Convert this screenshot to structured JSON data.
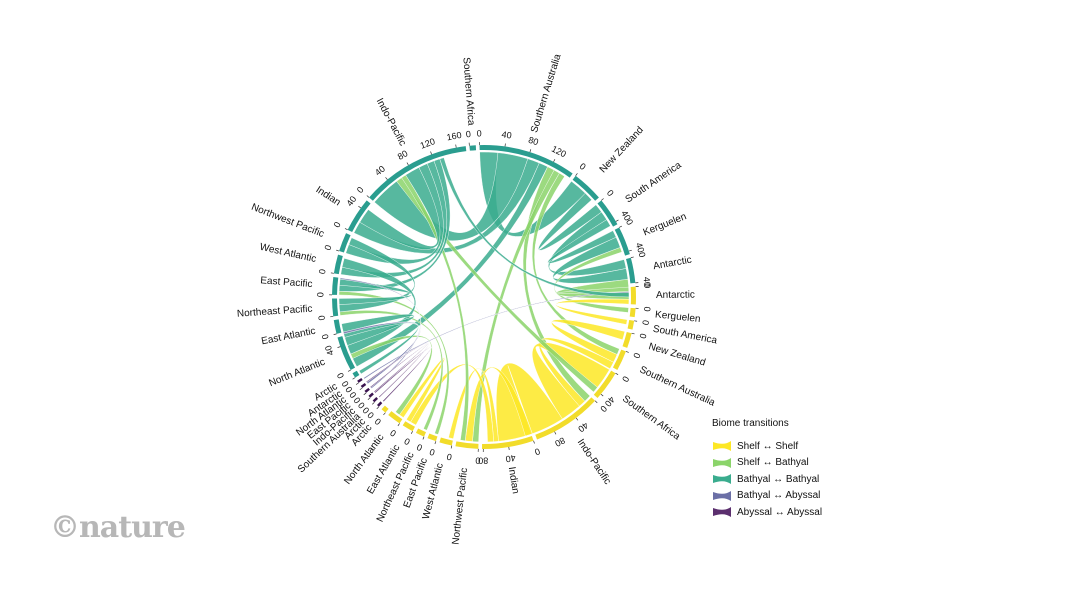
{
  "chart_data": {
    "type": "chord",
    "title": "",
    "legend": {
      "title": "Biome transitions",
      "placement": "bottom-right",
      "items": [
        {
          "label": "Shelf ↔ Shelf",
          "color": "#fde725"
        },
        {
          "label": "Shelf ↔ Bathyal",
          "color": "#8bd46a"
        },
        {
          "label": "Bathyal ↔ Bathyal",
          "color": "#3aac8e"
        },
        {
          "label": "Bathyal ↔ Abyssal",
          "color": "#6b6fa6"
        },
        {
          "label": "Abyssal ↔ Abyssal",
          "color": "#5b2f6e"
        }
      ]
    },
    "ring_groups": [
      {
        "biome": "Bathyal",
        "color": "#2a9d8f"
      },
      {
        "biome": "Shelf",
        "color": "#f2dc2a"
      },
      {
        "biome": "Abyssal",
        "color": "#3b1450"
      }
    ],
    "segments": [
      {
        "id": "b-saus",
        "label": "Southern Australia",
        "biome": "Bathyal",
        "size": 155,
        "ticks": [
          "0",
          "40",
          "80",
          "120"
        ]
      },
      {
        "id": "b-nz",
        "label": "New Zealand",
        "biome": "Bathyal",
        "size": 50,
        "ticks": [
          "0"
        ]
      },
      {
        "id": "b-sam",
        "label": "South America",
        "biome": "Bathyal",
        "size": 45,
        "ticks": [
          "0",
          "40"
        ]
      },
      {
        "id": "b-ker",
        "label": "Kerguelen",
        "biome": "Bathyal",
        "size": 45,
        "ticks": [
          "0",
          "40"
        ]
      },
      {
        "id": "b-ant",
        "label": "Antarctic",
        "biome": "Bathyal",
        "size": 40,
        "ticks": [
          "0",
          "40"
        ]
      },
      {
        "id": "s-ant",
        "label": "Antarctic",
        "biome": "Shelf",
        "size": 28,
        "ticks": [
          "0"
        ]
      },
      {
        "id": "s-ker",
        "label": "Kerguelen",
        "biome": "Shelf",
        "size": 14,
        "ticks": [
          "0"
        ]
      },
      {
        "id": "s-sam",
        "label": "South America",
        "biome": "Shelf",
        "size": 14,
        "ticks": [
          "0"
        ]
      },
      {
        "id": "s-nz",
        "label": "New Zealand",
        "biome": "Shelf",
        "size": 24,
        "ticks": [
          "0"
        ]
      },
      {
        "id": "s-saus",
        "label": "Southern Australia",
        "biome": "Shelf",
        "size": 32,
        "ticks": [
          "0"
        ]
      },
      {
        "id": "s-saf",
        "label": "Southern Africa",
        "biome": "Shelf",
        "size": 48,
        "ticks": [
          "0",
          "40"
        ]
      },
      {
        "id": "s-ipac",
        "label": "Indo-Pacific",
        "biome": "Shelf",
        "size": 110,
        "ticks": [
          "0",
          "40",
          "80"
        ]
      },
      {
        "id": "s-ind",
        "label": "Indian",
        "biome": "Shelf",
        "size": 82,
        "ticks": [
          "0",
          "40",
          "80"
        ]
      },
      {
        "id": "s-nwp",
        "label": "Northwest Pacific",
        "biome": "Shelf",
        "size": 36,
        "ticks": [
          "0"
        ]
      },
      {
        "id": "s-wat",
        "label": "West Atlantic",
        "biome": "Shelf",
        "size": 20,
        "ticks": [
          "0"
        ]
      },
      {
        "id": "s-epac",
        "label": "East Pacific",
        "biome": "Shelf",
        "size": 14,
        "ticks": [
          "0"
        ]
      },
      {
        "id": "s-nep",
        "label": "Northeast Pacific",
        "biome": "Shelf",
        "size": 14,
        "ticks": [
          "0"
        ]
      },
      {
        "id": "s-eat",
        "label": "East Atlantic",
        "biome": "Shelf",
        "size": 18,
        "ticks": [
          "0"
        ]
      },
      {
        "id": "s-nat",
        "label": "North Atlantic",
        "biome": "Shelf",
        "size": 22,
        "ticks": [
          "0"
        ]
      },
      {
        "id": "s-arc",
        "label": "Arctic",
        "biome": "Shelf",
        "size": 8,
        "ticks": [
          "0"
        ]
      },
      {
        "id": "a-arc",
        "label": "Arctic",
        "biome": "Abyssal",
        "size": 4,
        "ticks": [
          "0"
        ]
      },
      {
        "id": "a-saus",
        "label": "Southern Australia",
        "biome": "Abyssal",
        "size": 4,
        "ticks": [
          "0"
        ]
      },
      {
        "id": "a-ipac",
        "label": "Indo-Pacific",
        "biome": "Abyssal",
        "size": 4,
        "ticks": [
          "0"
        ]
      },
      {
        "id": "a-epac",
        "label": "East Pacific",
        "biome": "Abyssal",
        "size": 4,
        "ticks": [
          "0"
        ]
      },
      {
        "id": "a-nat",
        "label": "North Atlantic",
        "biome": "Abyssal",
        "size": 4,
        "ticks": [
          "0"
        ]
      },
      {
        "id": "a-ant",
        "label": "Antarctic",
        "biome": "Abyssal",
        "size": 4,
        "ticks": [
          "0"
        ]
      },
      {
        "id": "b-arc",
        "label": "Arctic",
        "biome": "Bathyal",
        "size": 8,
        "ticks": [
          "0"
        ]
      },
      {
        "id": "b-nat",
        "label": "North Atlantic",
        "biome": "Bathyal",
        "size": 55,
        "ticks": [
          "0",
          "40"
        ]
      },
      {
        "id": "b-eat",
        "label": "East Atlantic",
        "biome": "Bathyal",
        "size": 22,
        "ticks": [
          "0"
        ]
      },
      {
        "id": "b-nep",
        "label": "Northeast Pacific",
        "biome": "Bathyal",
        "size": 28,
        "ticks": [
          "0"
        ]
      },
      {
        "id": "b-epac",
        "label": "East Pacific",
        "biome": "Bathyal",
        "size": 28,
        "ticks": [
          "0"
        ]
      },
      {
        "id": "b-wat",
        "label": "West Atlantic",
        "biome": "Bathyal",
        "size": 30,
        "ticks": [
          "0"
        ]
      },
      {
        "id": "b-nwp",
        "label": "Northwest Pacific",
        "biome": "Bathyal",
        "size": 30,
        "ticks": [
          "0"
        ]
      },
      {
        "id": "b-ind",
        "label": "Indian",
        "biome": "Bathyal",
        "size": 55,
        "ticks": [
          "0",
          "40"
        ]
      },
      {
        "id": "b-ipac",
        "label": "Indo-Pacific",
        "biome": "Bathyal",
        "size": 175,
        "ticks": [
          "0",
          "40",
          "80",
          "120",
          "160"
        ]
      },
      {
        "id": "b-saf",
        "label": "Southern Africa",
        "biome": "Bathyal",
        "size": 10,
        "ticks": [
          "0"
        ]
      }
    ],
    "links": [
      {
        "from": "b-saus",
        "to": "b-nz",
        "value": 30,
        "type": "Bathyal ↔ Bathyal"
      },
      {
        "from": "b-saus",
        "to": "b-ipac",
        "value": 50,
        "type": "Bathyal ↔ Bathyal"
      },
      {
        "from": "b-saus",
        "to": "b-ind",
        "value": 20,
        "type": "Bathyal ↔ Bathyal"
      },
      {
        "from": "b-saus",
        "to": "b-nat",
        "value": 15,
        "type": "Bathyal ↔ Bathyal"
      },
      {
        "from": "b-saus",
        "to": "s-ipac",
        "value": 12,
        "type": "Shelf ↔ Bathyal"
      },
      {
        "from": "b-saus",
        "to": "s-nwp",
        "value": 10,
        "type": "Shelf ↔ Bathyal"
      },
      {
        "from": "b-saus",
        "to": "s-saus",
        "value": 10,
        "type": "Shelf ↔ Bathyal"
      },
      {
        "from": "b-nz",
        "to": "b-sam",
        "value": 15,
        "type": "Bathyal ↔ Bathyal"
      },
      {
        "from": "b-sam",
        "to": "b-ant",
        "value": 15,
        "type": "Bathyal ↔ Bathyal"
      },
      {
        "from": "b-sam",
        "to": "b-ker",
        "value": 12,
        "type": "Bathyal ↔ Bathyal"
      },
      {
        "from": "b-ker",
        "to": "b-ant",
        "value": 18,
        "type": "Bathyal ↔ Bathyal"
      },
      {
        "from": "b-ker",
        "to": "s-ker",
        "value": 8,
        "type": "Shelf ↔ Bathyal"
      },
      {
        "from": "b-ant",
        "to": "s-ant",
        "value": 20,
        "type": "Shelf ↔ Bathyal"
      },
      {
        "from": "b-ant",
        "to": "a-ant",
        "value": 2,
        "type": "Bathyal ↔ Abyssal"
      },
      {
        "from": "s-ant",
        "to": "s-sam",
        "value": 8,
        "type": "Shelf ↔ Shelf"
      },
      {
        "from": "s-nz",
        "to": "s-saus",
        "value": 14,
        "type": "Shelf ↔ Shelf"
      },
      {
        "from": "s-saus",
        "to": "s-ipac",
        "value": 12,
        "type": "Shelf ↔ Shelf"
      },
      {
        "from": "s-saf",
        "to": "s-ipac",
        "value": 35,
        "type": "Shelf ↔ Shelf"
      },
      {
        "from": "s-saf",
        "to": "b-ipac",
        "value": 10,
        "type": "Shelf ↔ Bathyal"
      },
      {
        "from": "s-ipac",
        "to": "s-ind",
        "value": 55,
        "type": "Shelf ↔ Shelf"
      },
      {
        "from": "s-ipac",
        "to": "s-nwp",
        "value": 12,
        "type": "Shelf ↔ Shelf"
      },
      {
        "from": "s-ind",
        "to": "s-wat",
        "value": 8,
        "type": "Shelf ↔ Shelf"
      },
      {
        "from": "s-ind",
        "to": "s-eat",
        "value": 10,
        "type": "Shelf ↔ Shelf"
      },
      {
        "from": "s-nat",
        "to": "s-eat",
        "value": 8,
        "type": "Shelf ↔ Shelf"
      },
      {
        "from": "s-nwp",
        "to": "b-ipac",
        "value": 8,
        "type": "Shelf ↔ Bathyal"
      },
      {
        "from": "s-nat",
        "to": "b-nat",
        "value": 8,
        "type": "Shelf ↔ Bathyal"
      },
      {
        "from": "s-epac",
        "to": "b-epac",
        "value": 6,
        "type": "Shelf ↔ Bathyal"
      },
      {
        "from": "s-nep",
        "to": "b-nep",
        "value": 6,
        "type": "Shelf ↔ Bathyal"
      },
      {
        "from": "b-ipac",
        "to": "b-ind",
        "value": 25,
        "type": "Bathyal ↔ Bathyal"
      },
      {
        "from": "b-ipac",
        "to": "b-nwp",
        "value": 15,
        "type": "Bathyal ↔ Bathyal"
      },
      {
        "from": "b-ipac",
        "to": "b-wat",
        "value": 12,
        "type": "Bathyal ↔ Bathyal"
      },
      {
        "from": "b-ipac",
        "to": "b-epac",
        "value": 10,
        "type": "Bathyal ↔ Bathyal"
      },
      {
        "from": "b-ipac",
        "to": "b-ant",
        "value": 7,
        "type": "Bathyal ↔ Bathyal"
      },
      {
        "from": "b-nwp",
        "to": "b-nep",
        "value": 12,
        "type": "Bathyal ↔ Bathyal"
      },
      {
        "from": "b-wat",
        "to": "b-nat",
        "value": 15,
        "type": "Bathyal ↔ Bathyal"
      },
      {
        "from": "b-epac",
        "to": "b-nep",
        "value": 10,
        "type": "Bathyal ↔ Bathyal"
      },
      {
        "from": "b-eat",
        "to": "b-nat",
        "value": 14,
        "type": "Bathyal ↔ Bathyal"
      },
      {
        "from": "b-nat",
        "to": "b-arc",
        "value": 6,
        "type": "Bathyal ↔ Bathyal"
      },
      {
        "from": "b-nat",
        "to": "a-nat",
        "value": 3,
        "type": "Bathyal ↔ Abyssal"
      },
      {
        "from": "b-epac",
        "to": "a-epac",
        "value": 2,
        "type": "Bathyal ↔ Abyssal"
      },
      {
        "from": "a-arc",
        "to": "a-ipac",
        "value": 2,
        "type": "Abyssal ↔ Abyssal"
      },
      {
        "from": "a-saus",
        "to": "a-nat",
        "value": 1.5,
        "type": "Abyssal ↔ Abyssal"
      },
      {
        "from": "a-ipac",
        "to": "a-epac",
        "value": 1.5,
        "type": "Abyssal ↔ Abyssal"
      }
    ]
  },
  "branding": {
    "logo_text": "©nature"
  }
}
